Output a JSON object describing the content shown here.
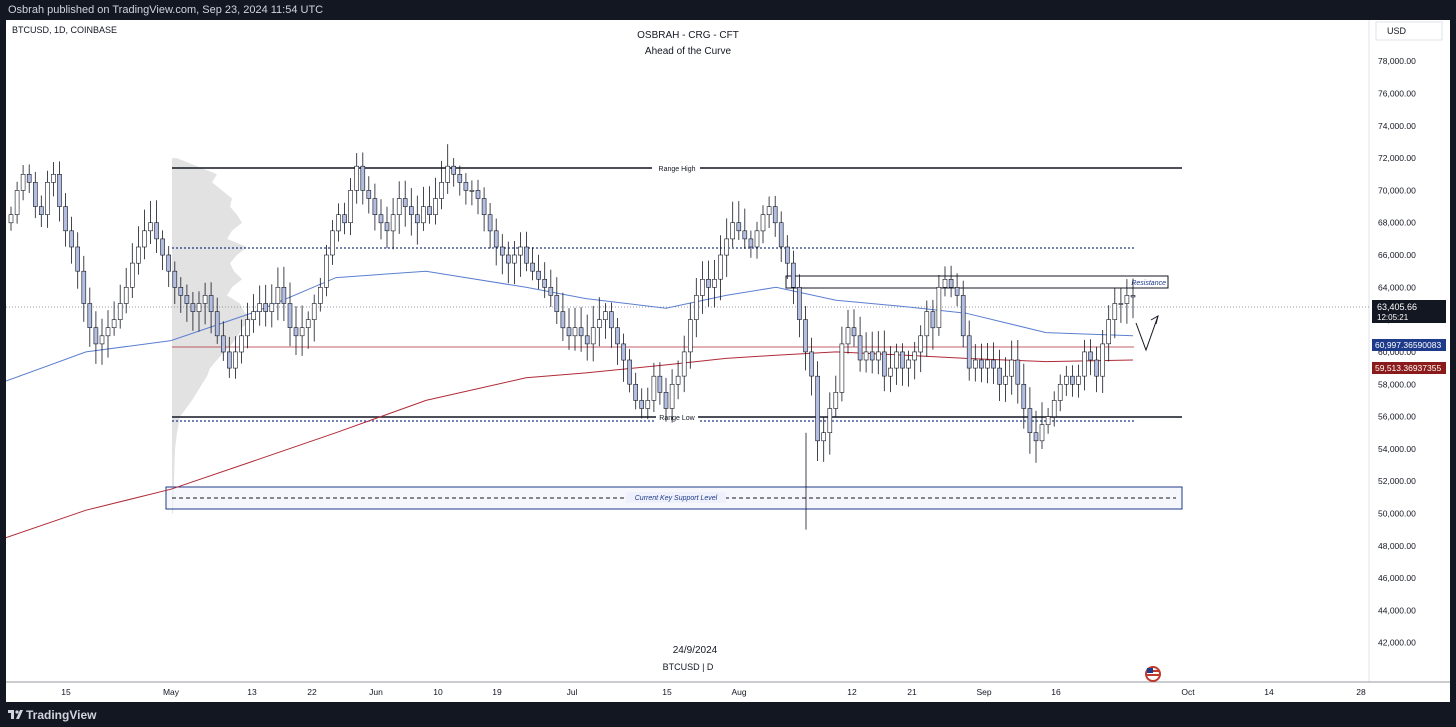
{
  "header": {
    "published": "Osbrah published on TradingView.com, Sep 23, 2024 11:54 UTC"
  },
  "symbol": {
    "info": "BTCUSD, 1D, COINBASE",
    "currency": "USD"
  },
  "titles": {
    "author": "OSBRAH - CRG - CFT",
    "subtitle": "Ahead of the Curve"
  },
  "annotations": {
    "range_high": "Range High",
    "range_low": "Range Low",
    "resistance": "Resistance",
    "support": "Current Key Support Level",
    "date_stamp": "24/9/2024",
    "symbol_tf": "BTCUSD | D"
  },
  "price_badges": {
    "last_price": "63,405.66",
    "countdown": "12:05:21",
    "ma_blue": "60,997.36590083",
    "ma_red": "59,513.36937355"
  },
  "colors": {
    "candle_up": "#ffffff",
    "candle_down": "#b2bde0",
    "ma_blue": "#5b7fd0",
    "ma_red": "#b02a37",
    "badge_blue": "#1e3a8a",
    "badge_red": "#8b1a1a",
    "support_box": "#1e3a8a"
  },
  "footer": {
    "brand": "TradingView",
    "logo_icon": "tradingview-logo-icon"
  },
  "chart_data": {
    "type": "candlestick",
    "ylim": [
      40000,
      80000
    ],
    "y_ticks": [
      "78,000.00",
      "76,000.00",
      "74,000.00",
      "72,000.00",
      "70,000.00",
      "68,000.00",
      "66,000.00",
      "64,000.00",
      "62,000.00",
      "60,000.00",
      "58,000.00",
      "56,000.00",
      "54,000.00",
      "52,000.00",
      "50,000.00",
      "48,000.00",
      "46,000.00",
      "44,000.00",
      "42,000.00"
    ],
    "x_ticks": [
      "15",
      "May",
      "13",
      "22",
      "Jun",
      "10",
      "19",
      "Jul",
      "15",
      "Aug",
      "12",
      "21",
      "Sep",
      "16",
      "Oct",
      "14",
      "28"
    ],
    "levels": {
      "range_high": 72000,
      "range_low": 56500,
      "support": 51500,
      "resistance_top": 65300,
      "resistance_bottom": 64500,
      "dotted_upper": 66900,
      "dotted_lower": 56300
    },
    "ma_blue_last": 60997.37,
    "ma_red_last": 59513.37,
    "last_price": 63405.66,
    "closes": [
      68500,
      70000,
      71000,
      70500,
      69000,
      68500,
      70500,
      71000,
      69000,
      67500,
      66500,
      65000,
      63000,
      61500,
      60500,
      61000,
      61500,
      62000,
      63000,
      64000,
      65500,
      66500,
      67500,
      68000,
      67000,
      66000,
      65000,
      64000,
      63500,
      63000,
      62500,
      63000,
      63500,
      62500,
      61000,
      60000,
      59000,
      60000,
      61000,
      62000,
      62500,
      63000,
      62500,
      63000,
      64000,
      63000,
      61500,
      61000,
      61500,
      62000,
      63000,
      64000,
      66000,
      67500,
      68500,
      68000,
      70000,
      71500,
      70000,
      69500,
      68500,
      68000,
      67500,
      68500,
      69500,
      69000,
      68500,
      68000,
      69000,
      68500,
      69500,
      70500,
      71500,
      71000,
      70500,
      70000,
      70000,
      69500,
      68500,
      67500,
      66500,
      66000,
      65500,
      66000,
      66500,
      65500,
      65000,
      64500,
      64000,
      63500,
      62500,
      61500,
      61000,
      61500,
      61000,
      60500,
      61500,
      62000,
      62500,
      61500,
      60500,
      59500,
      58000,
      57000,
      56500,
      57000,
      58500,
      57500,
      56500,
      58000,
      58500,
      60000,
      62000,
      63500,
      64500,
      64000,
      64500,
      66000,
      67000,
      68000,
      67500,
      67000,
      66500,
      67500,
      68500,
      69000,
      68000,
      66500,
      65500,
      64000,
      62000,
      60000,
      58500,
      54500,
      55000,
      56500,
      57500,
      60500,
      61500,
      61000,
      59500,
      60000,
      59500,
      60000,
      58500,
      59000,
      60000,
      59000,
      59500,
      60000,
      61000,
      62500,
      61500,
      64000,
      64500,
      64000,
      63500,
      61000,
      59000,
      59500,
      59000,
      59500,
      59000,
      58000,
      58500,
      59500,
      58000,
      56500,
      55000,
      54500,
      55500,
      56000,
      57000,
      58000,
      58500,
      58000,
      58500,
      60000,
      59500,
      58500,
      60500,
      62000,
      63000,
      63000,
      63500,
      63400
    ]
  }
}
